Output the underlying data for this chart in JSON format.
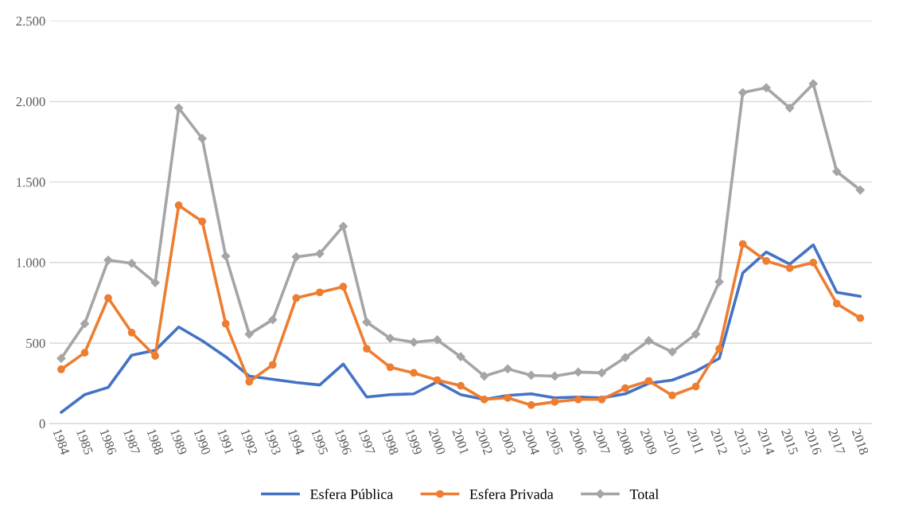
{
  "chart_data": {
    "type": "line",
    "categories": [
      "1984",
      "1985",
      "1986",
      "1987",
      "1988",
      "1989",
      "1990",
      "1991",
      "1992",
      "1993",
      "1994",
      "1995",
      "1996",
      "1997",
      "1998",
      "1999",
      "2000",
      "2001",
      "2002",
      "2003",
      "2004",
      "2005",
      "2006",
      "2007",
      "2008",
      "2009",
      "2010",
      "2011",
      "2012",
      "2013",
      "2014",
      "2015",
      "2016",
      "2017",
      "2018"
    ],
    "series": [
      {
        "name": "Esfera Pública",
        "color": "#4472c4",
        "marker": "none",
        "values": [
          70,
          180,
          225,
          425,
          455,
          600,
          515,
          415,
          295,
          275,
          255,
          240,
          370,
          165,
          180,
          185,
          260,
          180,
          150,
          175,
          185,
          160,
          165,
          160,
          185,
          250,
          270,
          325,
          405,
          935,
          1065,
          990,
          1110,
          815,
          790
        ]
      },
      {
        "name": "Esfera Privada",
        "color": "#ed7d31",
        "marker": "circle",
        "values": [
          337,
          440,
          780,
          565,
          420,
          1355,
          1255,
          620,
          260,
          365,
          780,
          815,
          850,
          465,
          350,
          315,
          270,
          235,
          150,
          160,
          115,
          135,
          150,
          150,
          220,
          265,
          175,
          230,
          465,
          1115,
          1010,
          965,
          1000,
          745,
          655
        ]
      },
      {
        "name": "Total",
        "color": "#a5a5a5",
        "marker": "diamond",
        "values": [
          405,
          620,
          1015,
          995,
          875,
          1960,
          1770,
          1040,
          555,
          645,
          1035,
          1055,
          1225,
          630,
          530,
          505,
          520,
          415,
          295,
          340,
          300,
          295,
          320,
          315,
          410,
          515,
          445,
          555,
          880,
          2055,
          2085,
          1960,
          2110,
          1565,
          1450
        ]
      }
    ],
    "ylim": [
      0,
      2500
    ],
    "yticks": [
      0,
      500,
      {
        "value": 1000,
        "label": "1.000"
      },
      {
        "value": 1500,
        "label": "1.500"
      },
      {
        "value": 2000,
        "label": "2.000"
      },
      {
        "value": 2500,
        "label": "2.500"
      }
    ],
    "grid": "y",
    "legend": "bottom",
    "line_style": "solid"
  }
}
